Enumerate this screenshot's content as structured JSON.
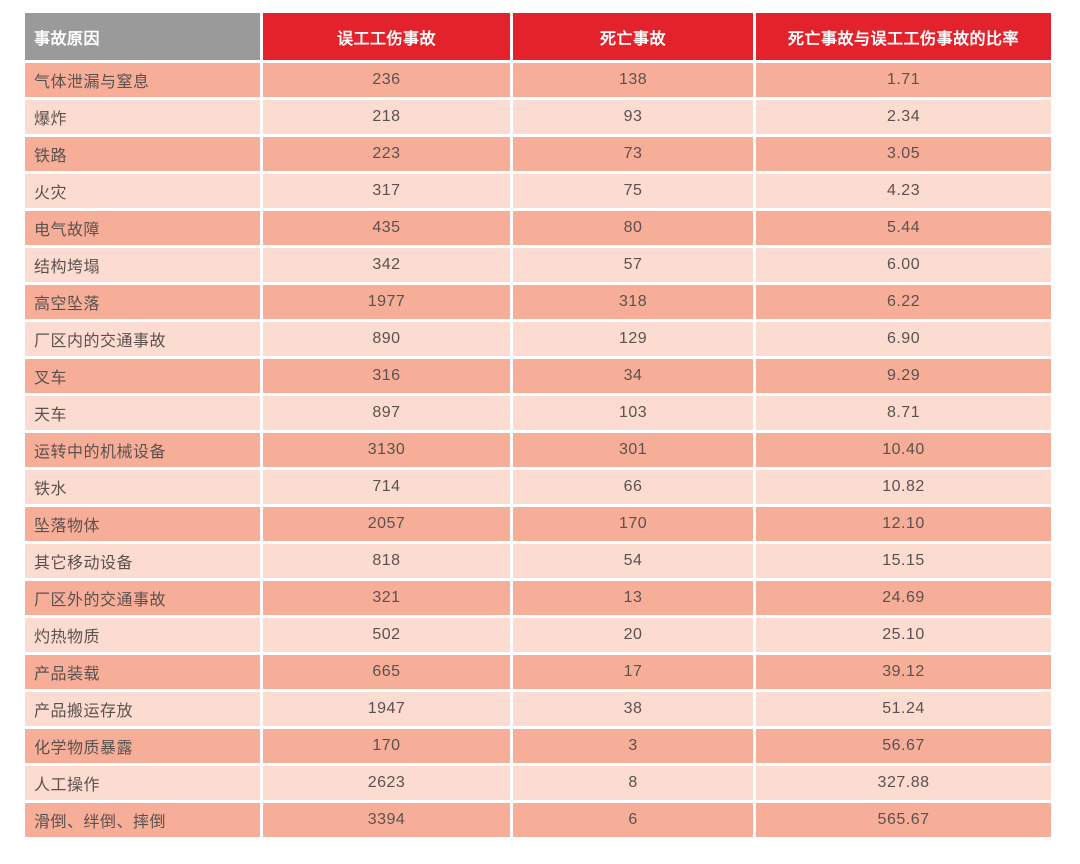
{
  "chart_data": {
    "type": "table",
    "columns": [
      "事故原因",
      "误工工伤事故",
      "死亡事故",
      "死亡事故与误工工伤事故的比率"
    ],
    "rows": [
      [
        "气体泄漏与窒息",
        "236",
        "138",
        "1.71"
      ],
      [
        "爆炸",
        "218",
        "93",
        "2.34"
      ],
      [
        "铁路",
        "223",
        "73",
        "3.05"
      ],
      [
        "火灾",
        "317",
        "75",
        "4.23"
      ],
      [
        "电气故障",
        "435",
        "80",
        "5.44"
      ],
      [
        "结构垮塌",
        "342",
        "57",
        "6.00"
      ],
      [
        "高空坠落",
        "1977",
        "318",
        "6.22"
      ],
      [
        "厂区内的交通事故",
        "890",
        "129",
        "6.90"
      ],
      [
        "叉车",
        "316",
        "34",
        "9.29"
      ],
      [
        "天车",
        "897",
        "103",
        "8.71"
      ],
      [
        "运转中的机械设备",
        "3130",
        "301",
        "10.40"
      ],
      [
        "铁水",
        "714",
        "66",
        "10.82"
      ],
      [
        "坠落物体",
        "2057",
        "170",
        "12.10"
      ],
      [
        "其它移动设备",
        "818",
        "54",
        "15.15"
      ],
      [
        "厂区外的交通事故",
        "321",
        "13",
        "24.69"
      ],
      [
        "灼热物质",
        "502",
        "20",
        "25.10"
      ],
      [
        "产品装载",
        "665",
        "17",
        "39.12"
      ],
      [
        "产品搬运存放",
        "1947",
        "38",
        "51.24"
      ],
      [
        "化学物质暴露",
        "170",
        "3",
        "56.67"
      ],
      [
        "人工操作",
        "2623",
        "8",
        "327.88"
      ],
      [
        "滑倒、绊倒、摔倒",
        "3394",
        "6",
        "565.67"
      ]
    ],
    "colors": {
      "header_cause_bg": "#9a9a9a",
      "header_metric_bg": "#e4222c",
      "header_text": "#ffffff",
      "row_odd_bg": "#f7ae99",
      "row_even_bg": "#fcdcd1",
      "body_text": "#5b514f",
      "page_bg": "#ffffff"
    }
  }
}
